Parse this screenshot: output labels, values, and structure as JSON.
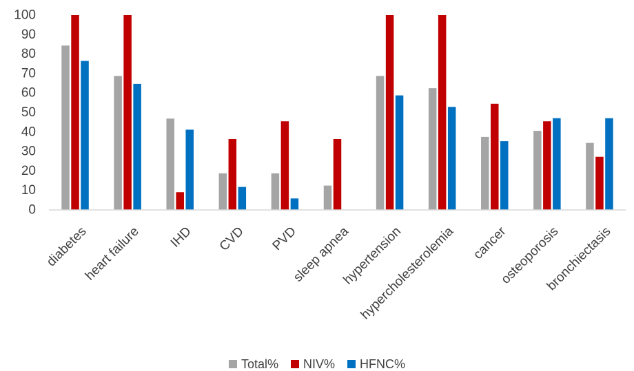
{
  "chart_data": {
    "type": "bar",
    "categories": [
      "diabetes",
      "heart failure",
      "IHD",
      "CVD",
      "PVD",
      "sleep apnea",
      "hypertension",
      "hypercholesterolemia",
      "cancer",
      "osteoporosis",
      "bronchiectasis"
    ],
    "series": [
      {
        "name": "Total%",
        "color": "#a5a5a5",
        "values": [
          84.4,
          68.8,
          46.9,
          18.8,
          18.8,
          12.5,
          68.8,
          62.5,
          37.5,
          40.6,
          34.4
        ]
      },
      {
        "name": "NIV%",
        "color": "#c00000",
        "values": [
          100,
          100,
          9.1,
          36.4,
          45.5,
          36.4,
          100,
          100,
          54.5,
          45.5,
          27.3
        ]
      },
      {
        "name": "HFNC%",
        "color": "#0070c0",
        "values": [
          76.5,
          64.7,
          41.2,
          11.8,
          5.9,
          0,
          58.8,
          52.9,
          35.3,
          47.1,
          47.1
        ]
      }
    ],
    "ylim": [
      0,
      100
    ],
    "yticks": [
      0,
      10,
      20,
      30,
      40,
      50,
      60,
      70,
      80,
      90,
      100
    ],
    "grid": false,
    "legend_position": "bottom",
    "title": "",
    "xlabel": "",
    "ylabel": ""
  }
}
